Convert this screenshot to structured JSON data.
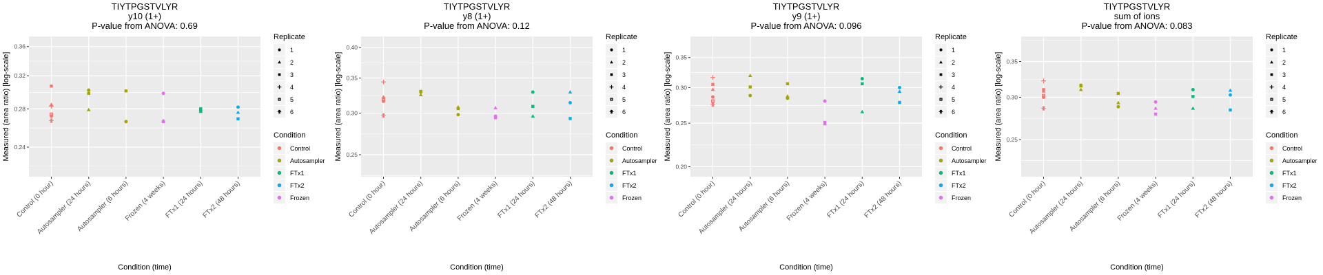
{
  "chart_data": [
    {
      "type": "scatter",
      "title": "TIYTPGSTVLYR",
      "subtitle": "y10 (1+)",
      "pvalue_label": "P-value from ANOVA: 0.69",
      "xlabel": "Condition (time)",
      "ylabel": "Measured (area ratio) [log-scale]",
      "yscale": "log",
      "ylim": [
        0.213,
        0.375
      ],
      "yticks": [
        0.24,
        0.28,
        0.32,
        0.36
      ],
      "ytick_labels": [
        "0.24",
        "0.28",
        "0.32",
        "0.36"
      ],
      "categories": [
        "Control (0 hour)",
        "Autosampler (24 hours)",
        "Autosampler (6 hours)",
        "Frozen (4 weeks)",
        "FTx1 (24 hours)",
        "FTx2 (48 hours)"
      ],
      "points": [
        {
          "x": 0,
          "y": 0.307,
          "condition": "Control",
          "replicate": 3
        },
        {
          "x": 0,
          "y": 0.285,
          "condition": "Control",
          "replicate": 2
        },
        {
          "x": 0,
          "y": 0.283,
          "condition": "Control",
          "replicate": 4
        },
        {
          "x": 0,
          "y": 0.274,
          "condition": "Control",
          "replicate": 5
        },
        {
          "x": 0,
          "y": 0.272,
          "condition": "Control",
          "replicate": 1
        },
        {
          "x": 0,
          "y": 0.267,
          "condition": "Control",
          "replicate": 6
        },
        {
          "x": 1,
          "y": 0.302,
          "condition": "Autosampler",
          "replicate": 1
        },
        {
          "x": 1,
          "y": 0.298,
          "condition": "Autosampler",
          "replicate": 3
        },
        {
          "x": 1,
          "y": 0.279,
          "condition": "Autosampler",
          "replicate": 2
        },
        {
          "x": 2,
          "y": 0.301,
          "condition": "Autosampler",
          "replicate": 3
        },
        {
          "x": 2,
          "y": 0.266,
          "condition": "Autosampler",
          "replicate": 1
        },
        {
          "x": 3,
          "y": 0.298,
          "condition": "Frozen",
          "replicate": 1
        },
        {
          "x": 3,
          "y": 0.267,
          "condition": "Frozen",
          "replicate": 2
        },
        {
          "x": 3,
          "y": 0.266,
          "condition": "Frozen",
          "replicate": 3
        },
        {
          "x": 4,
          "y": 0.28,
          "condition": "FTx1",
          "replicate": 3
        },
        {
          "x": 4,
          "y": 0.278,
          "condition": "FTx1",
          "replicate": 1
        },
        {
          "x": 4,
          "y": 0.277,
          "condition": "FTx1",
          "replicate": 2
        },
        {
          "x": 5,
          "y": 0.282,
          "condition": "FTx2",
          "replicate": 1
        },
        {
          "x": 5,
          "y": 0.276,
          "condition": "FTx2",
          "replicate": 2
        },
        {
          "x": 5,
          "y": 0.269,
          "condition": "FTx2",
          "replicate": 3
        }
      ]
    },
    {
      "type": "scatter",
      "title": "TIYTPGSTVLYR",
      "subtitle": "y8 (1+)",
      "pvalue_label": "P-value from ANOVA: 0.12",
      "xlabel": "Condition (time)",
      "ylabel": "Measured (area ratio) [log-scale]",
      "yscale": "log",
      "ylim": [
        0.227,
        0.42
      ],
      "yticks": [
        0.25,
        0.3,
        0.35,
        0.4
      ],
      "ytick_labels": [
        "0.25",
        "0.30",
        "0.35",
        "0.40"
      ],
      "categories": [
        "Control (0 hour)",
        "Autosampler (24 hours)",
        "Autosampler (6 hours)",
        "Frozen (4 weeks)",
        "FTx1 (24 hours)",
        "FTx2 (48 hours)"
      ],
      "points": [
        {
          "x": 0,
          "y": 0.344,
          "condition": "Control",
          "replicate": 4
        },
        {
          "x": 0,
          "y": 0.322,
          "condition": "Control",
          "replicate": 2
        },
        {
          "x": 0,
          "y": 0.32,
          "condition": "Control",
          "replicate": 3
        },
        {
          "x": 0,
          "y": 0.318,
          "condition": "Control",
          "replicate": 5
        },
        {
          "x": 0,
          "y": 0.316,
          "condition": "Control",
          "replicate": 1
        },
        {
          "x": 0,
          "y": 0.297,
          "condition": "Control",
          "replicate": 6
        },
        {
          "x": 1,
          "y": 0.33,
          "condition": "Autosampler",
          "replicate": 3
        },
        {
          "x": 1,
          "y": 0.329,
          "condition": "Autosampler",
          "replicate": 1
        },
        {
          "x": 1,
          "y": 0.325,
          "condition": "Autosampler",
          "replicate": 2
        },
        {
          "x": 2,
          "y": 0.308,
          "condition": "Autosampler",
          "replicate": 2
        },
        {
          "x": 2,
          "y": 0.306,
          "condition": "Autosampler",
          "replicate": 3
        },
        {
          "x": 2,
          "y": 0.298,
          "condition": "Autosampler",
          "replicate": 1
        },
        {
          "x": 3,
          "y": 0.307,
          "condition": "Frozen",
          "replicate": 2
        },
        {
          "x": 3,
          "y": 0.296,
          "condition": "Frozen",
          "replicate": 1
        },
        {
          "x": 3,
          "y": 0.294,
          "condition": "Frozen",
          "replicate": 3
        },
        {
          "x": 4,
          "y": 0.329,
          "condition": "FTx1",
          "replicate": 1
        },
        {
          "x": 4,
          "y": 0.309,
          "condition": "FTx1",
          "replicate": 3
        },
        {
          "x": 4,
          "y": 0.296,
          "condition": "FTx1",
          "replicate": 2
        },
        {
          "x": 5,
          "y": 0.329,
          "condition": "FTx2",
          "replicate": 2
        },
        {
          "x": 5,
          "y": 0.314,
          "condition": "FTx2",
          "replicate": 1
        },
        {
          "x": 5,
          "y": 0.293,
          "condition": "FTx2",
          "replicate": 3
        }
      ]
    },
    {
      "type": "scatter",
      "title": "TIYTPGSTVLYR",
      "subtitle": "y9 (1+)",
      "pvalue_label": "P-value from ANOVA: 0.096",
      "xlabel": "Condition (time)",
      "ylabel": "Measured (area ratio) [log-scale]",
      "yscale": "log",
      "ylim": [
        0.19,
        0.39
      ],
      "yticks": [
        0.2,
        0.25,
        0.3,
        0.35
      ],
      "ytick_labels": [
        "0.20",
        "0.25",
        "0.30",
        "0.35"
      ],
      "categories": [
        "Control (0 hour)",
        "Autosampler (24 hours)",
        "Autosampler (6 hours)",
        "Frozen (4 weeks)",
        "FTx1 (24 hours)",
        "FTx2 (48 hours)"
      ],
      "points": [
        {
          "x": 0,
          "y": 0.316,
          "condition": "Control",
          "replicate": 4
        },
        {
          "x": 0,
          "y": 0.305,
          "condition": "Control",
          "replicate": 3
        },
        {
          "x": 0,
          "y": 0.297,
          "condition": "Control",
          "replicate": 2
        },
        {
          "x": 0,
          "y": 0.286,
          "condition": "Control",
          "replicate": 1
        },
        {
          "x": 0,
          "y": 0.28,
          "condition": "Control",
          "replicate": 5
        },
        {
          "x": 0,
          "y": 0.275,
          "condition": "Control",
          "replicate": 6
        },
        {
          "x": 1,
          "y": 0.319,
          "condition": "Autosampler",
          "replicate": 2
        },
        {
          "x": 1,
          "y": 0.301,
          "condition": "Autosampler",
          "replicate": 3
        },
        {
          "x": 1,
          "y": 0.288,
          "condition": "Autosampler",
          "replicate": 1
        },
        {
          "x": 2,
          "y": 0.306,
          "condition": "Autosampler",
          "replicate": 3
        },
        {
          "x": 2,
          "y": 0.287,
          "condition": "Autosampler",
          "replicate": 2
        },
        {
          "x": 2,
          "y": 0.284,
          "condition": "Autosampler",
          "replicate": 1
        },
        {
          "x": 3,
          "y": 0.28,
          "condition": "Frozen",
          "replicate": 1
        },
        {
          "x": 3,
          "y": 0.251,
          "condition": "Frozen",
          "replicate": 3
        },
        {
          "x": 3,
          "y": 0.249,
          "condition": "Frozen",
          "replicate": 2
        },
        {
          "x": 4,
          "y": 0.314,
          "condition": "FTx1",
          "replicate": 1
        },
        {
          "x": 4,
          "y": 0.306,
          "condition": "FTx1",
          "replicate": 3
        },
        {
          "x": 4,
          "y": 0.265,
          "condition": "FTx1",
          "replicate": 2
        },
        {
          "x": 5,
          "y": 0.3,
          "condition": "FTx2",
          "replicate": 1
        },
        {
          "x": 5,
          "y": 0.294,
          "condition": "FTx2",
          "replicate": 2
        },
        {
          "x": 5,
          "y": 0.278,
          "condition": "FTx2",
          "replicate": 3
        }
      ]
    },
    {
      "type": "scatter",
      "title": "TIYTPGSTVLYR",
      "subtitle": "sum of ions",
      "pvalue_label": "P-value from ANOVA: 0.083",
      "xlabel": "Condition (time)",
      "ylabel": "Measured (area ratio) [log-scale]",
      "yscale": "log",
      "ylim": [
        0.213,
        0.39
      ],
      "yticks": [
        0.25,
        0.3,
        0.35
      ],
      "ytick_labels": [
        "0.25",
        "0.30",
        "0.35"
      ],
      "categories": [
        "Control (0 hour)",
        "Autosampler (24 hours)",
        "Autosampler (6 hours)",
        "Frozen (4 weeks)",
        "FTx1 (24 hours)",
        "FTx2 (48 hours)"
      ],
      "points": [
        {
          "x": 0,
          "y": 0.322,
          "condition": "Control",
          "replicate": 4
        },
        {
          "x": 0,
          "y": 0.31,
          "condition": "Control",
          "replicate": 3
        },
        {
          "x": 0,
          "y": 0.308,
          "condition": "Control",
          "replicate": 2
        },
        {
          "x": 0,
          "y": 0.302,
          "condition": "Control",
          "replicate": 5
        },
        {
          "x": 0,
          "y": 0.3,
          "condition": "Control",
          "replicate": 1
        },
        {
          "x": 0,
          "y": 0.286,
          "condition": "Control",
          "replicate": 6
        },
        {
          "x": 1,
          "y": 0.316,
          "condition": "Autosampler",
          "replicate": 1
        },
        {
          "x": 1,
          "y": 0.315,
          "condition": "Autosampler",
          "replicate": 3
        },
        {
          "x": 1,
          "y": 0.31,
          "condition": "Autosampler",
          "replicate": 2
        },
        {
          "x": 2,
          "y": 0.305,
          "condition": "Autosampler",
          "replicate": 3
        },
        {
          "x": 2,
          "y": 0.293,
          "condition": "Autosampler",
          "replicate": 2
        },
        {
          "x": 2,
          "y": 0.288,
          "condition": "Autosampler",
          "replicate": 1
        },
        {
          "x": 3,
          "y": 0.294,
          "condition": "Frozen",
          "replicate": 1
        },
        {
          "x": 3,
          "y": 0.286,
          "condition": "Frozen",
          "replicate": 2
        },
        {
          "x": 3,
          "y": 0.279,
          "condition": "Frozen",
          "replicate": 3
        },
        {
          "x": 4,
          "y": 0.31,
          "condition": "FTx1",
          "replicate": 1
        },
        {
          "x": 4,
          "y": 0.301,
          "condition": "FTx1",
          "replicate": 3
        },
        {
          "x": 4,
          "y": 0.286,
          "condition": "FTx1",
          "replicate": 2
        },
        {
          "x": 5,
          "y": 0.309,
          "condition": "FTx2",
          "replicate": 2
        },
        {
          "x": 5,
          "y": 0.303,
          "condition": "FTx2",
          "replicate": 1
        },
        {
          "x": 5,
          "y": 0.284,
          "condition": "FTx2",
          "replicate": 3
        }
      ]
    }
  ],
  "legend": {
    "replicate_title": "Replicate",
    "replicates": [
      {
        "label": "1",
        "shape": "circle"
      },
      {
        "label": "2",
        "shape": "triangle"
      },
      {
        "label": "3",
        "shape": "square"
      },
      {
        "label": "4",
        "shape": "plus"
      },
      {
        "label": "5",
        "shape": "boxed-square"
      },
      {
        "label": "6",
        "shape": "asterisk"
      }
    ],
    "condition_title": "Condition",
    "conditions": [
      {
        "label": "Control",
        "color": "#F8766D"
      },
      {
        "label": "Autosampler",
        "color": "#A3A500"
      },
      {
        "label": "FTx1",
        "color": "#00BF7D"
      },
      {
        "label": "FTx2",
        "color": "#00B0F6"
      },
      {
        "label": "Frozen",
        "color": "#E76BF3"
      }
    ]
  }
}
